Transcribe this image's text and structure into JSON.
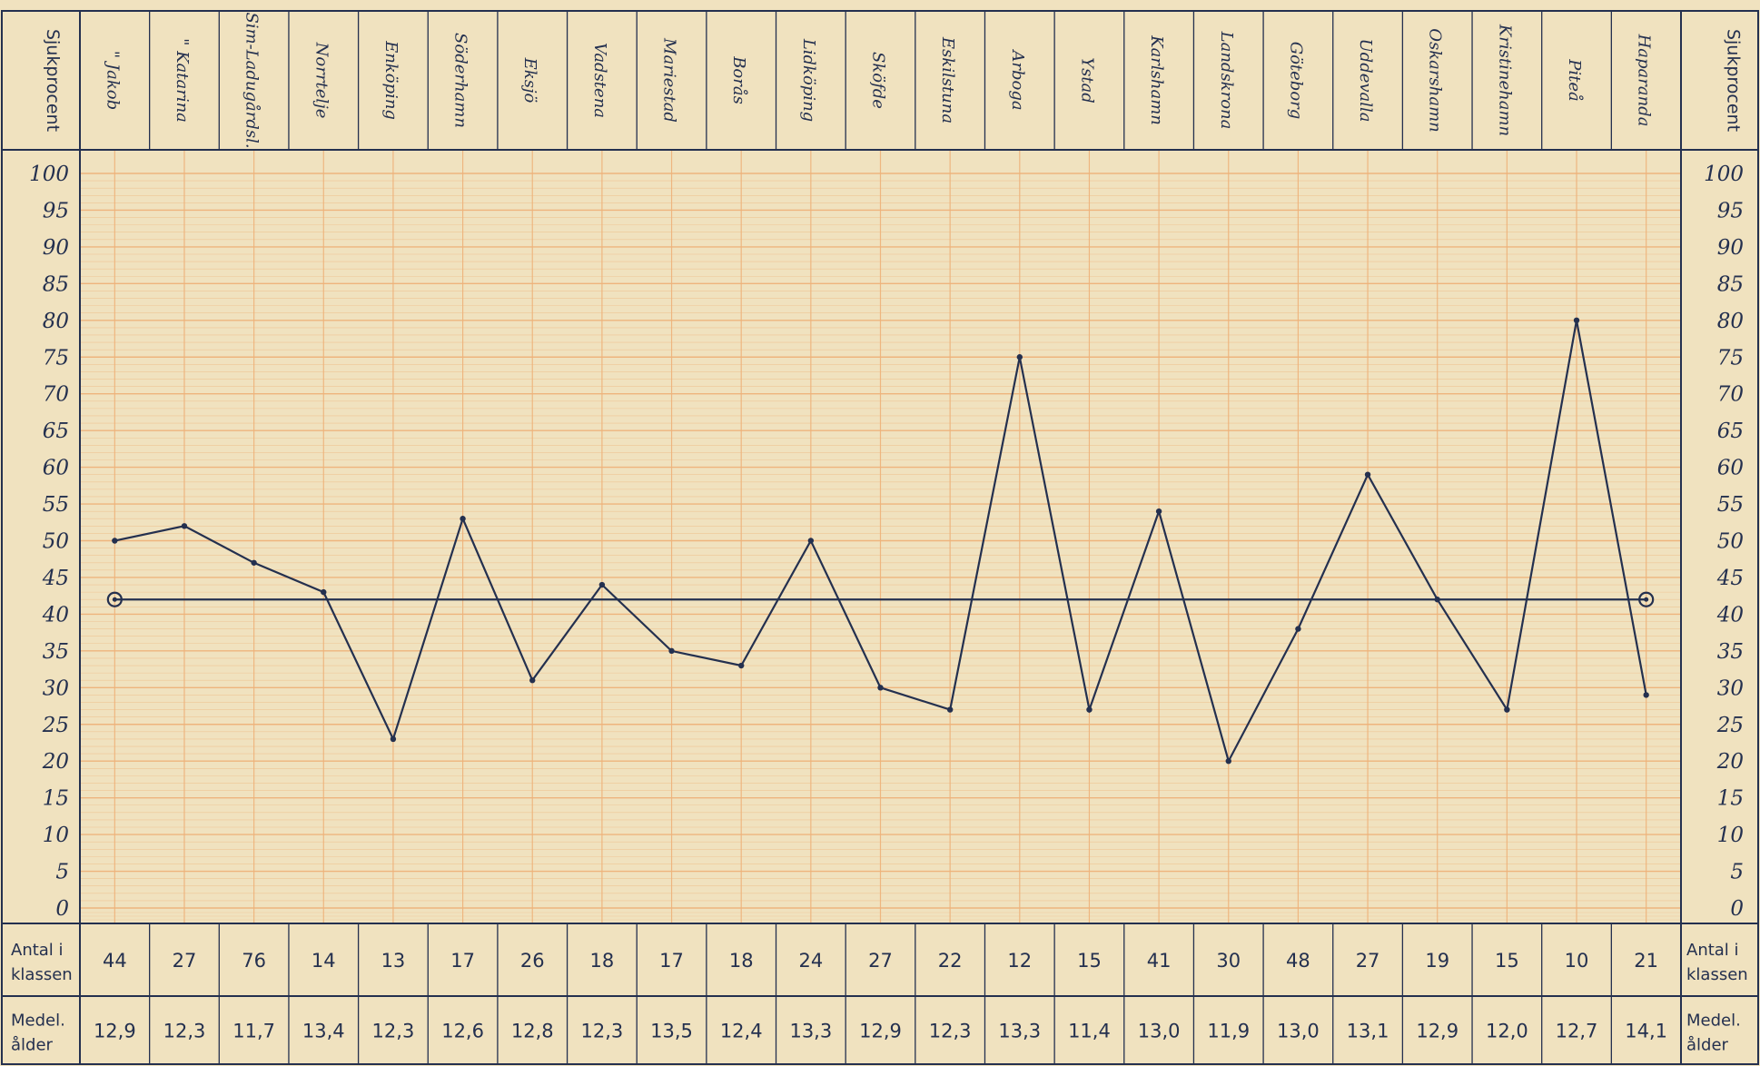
{
  "chart_data": {
    "type": "line",
    "ylabel": "Sjukprocent",
    "ylim": [
      0,
      100
    ],
    "yticks": [
      100,
      95,
      90,
      85,
      80,
      75,
      70,
      65,
      60,
      55,
      50,
      45,
      40,
      35,
      30,
      25,
      20,
      15,
      10,
      5,
      0
    ],
    "grid": true,
    "categories": [
      "\" Jakob",
      "\" Katarina",
      "Sim-Ladugårdsl.",
      "Norrtelje",
      "Enköping",
      "Söderhamn",
      "Eksjö",
      "Vadstena",
      "Mariestad",
      "Borås",
      "Lidköping",
      "Sköfde",
      "Eskilstuna",
      "Arboga",
      "Ystad",
      "Karlshamn",
      "Landskrona",
      "Göteborg",
      "Uddevalla",
      "Oskarshamn",
      "Kristinehamn",
      "Piteå",
      "Haparanda"
    ],
    "series": [
      {
        "values": [
          50,
          52,
          47,
          43,
          23,
          53,
          31,
          44,
          35,
          33,
          50,
          30,
          27,
          75,
          27,
          54,
          20,
          38,
          59,
          42,
          27,
          80,
          29
        ]
      }
    ],
    "reference_line": {
      "value": 42
    },
    "table_rows": [
      {
        "label": [
          "Antal i",
          "klassen"
        ],
        "values": [
          "44",
          "27",
          "76",
          "14",
          "13",
          "17",
          "26",
          "18",
          "17",
          "18",
          "24",
          "27",
          "22",
          "12",
          "15",
          "41",
          "30",
          "48",
          "27",
          "19",
          "15",
          "10",
          "21"
        ]
      },
      {
        "label": [
          "Medel.",
          "ålder"
        ],
        "values": [
          "12,9",
          "12,3",
          "11,7",
          "13,4",
          "12,3",
          "12,6",
          "12,8",
          "12,3",
          "13,5",
          "12,4",
          "13,3",
          "12,9",
          "12,3",
          "13,3",
          "11,4",
          "13,0",
          "11,9",
          "13,0",
          "13,1",
          "12,9",
          "12,0",
          "12,7",
          "14,1"
        ]
      }
    ],
    "colors": {
      "paper": "#f0e2bf",
      "grid": "#eeb27a",
      "ink": "#24304f"
    }
  }
}
